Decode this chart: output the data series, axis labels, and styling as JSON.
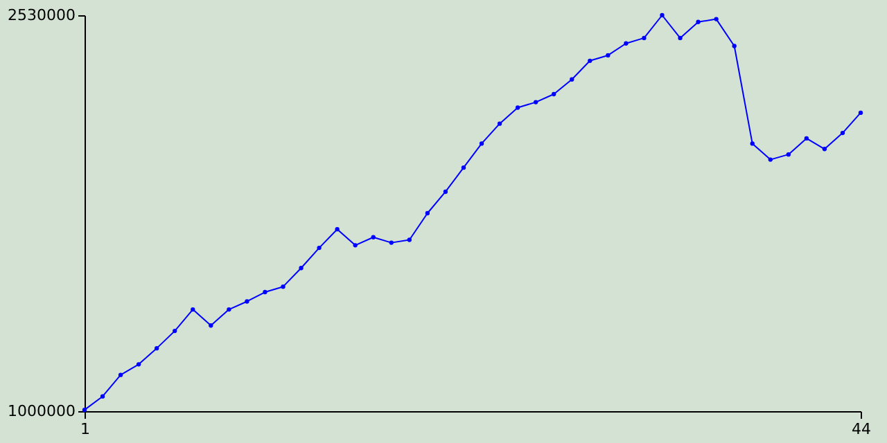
{
  "chart_data": {
    "type": "line",
    "x": [
      1,
      2,
      3,
      4,
      5,
      6,
      7,
      8,
      9,
      10,
      11,
      12,
      13,
      14,
      15,
      16,
      17,
      18,
      19,
      20,
      21,
      22,
      23,
      24,
      25,
      26,
      27,
      28,
      29,
      30,
      31,
      32,
      33,
      34,
      35,
      36,
      37,
      38,
      39,
      40,
      41,
      42,
      43,
      44
    ],
    "series": [
      {
        "color": "#0000ff",
        "values": [
          1005000,
          1057000,
          1140000,
          1181000,
          1243000,
          1310000,
          1393000,
          1331000,
          1393000,
          1424000,
          1460000,
          1481000,
          1553000,
          1631000,
          1703000,
          1641000,
          1672000,
          1651000,
          1662000,
          1765000,
          1848000,
          1941000,
          2034000,
          2111000,
          2173000,
          2194000,
          2225000,
          2282000,
          2354000,
          2375000,
          2421000,
          2442000,
          2530000,
          2442000,
          2504000,
          2515000,
          2411000,
          2034000,
          1972000,
          1992000,
          2054000,
          2013000,
          2075000,
          2153000
        ]
      }
    ],
    "xlim": [
      1,
      44
    ],
    "xticks": [
      1,
      44
    ],
    "ylim": [
      1000000,
      2530000
    ],
    "yticks": [
      1000000,
      2530000
    ],
    "grid": false,
    "legend": false,
    "marker": "circle",
    "line_style": "solid"
  }
}
